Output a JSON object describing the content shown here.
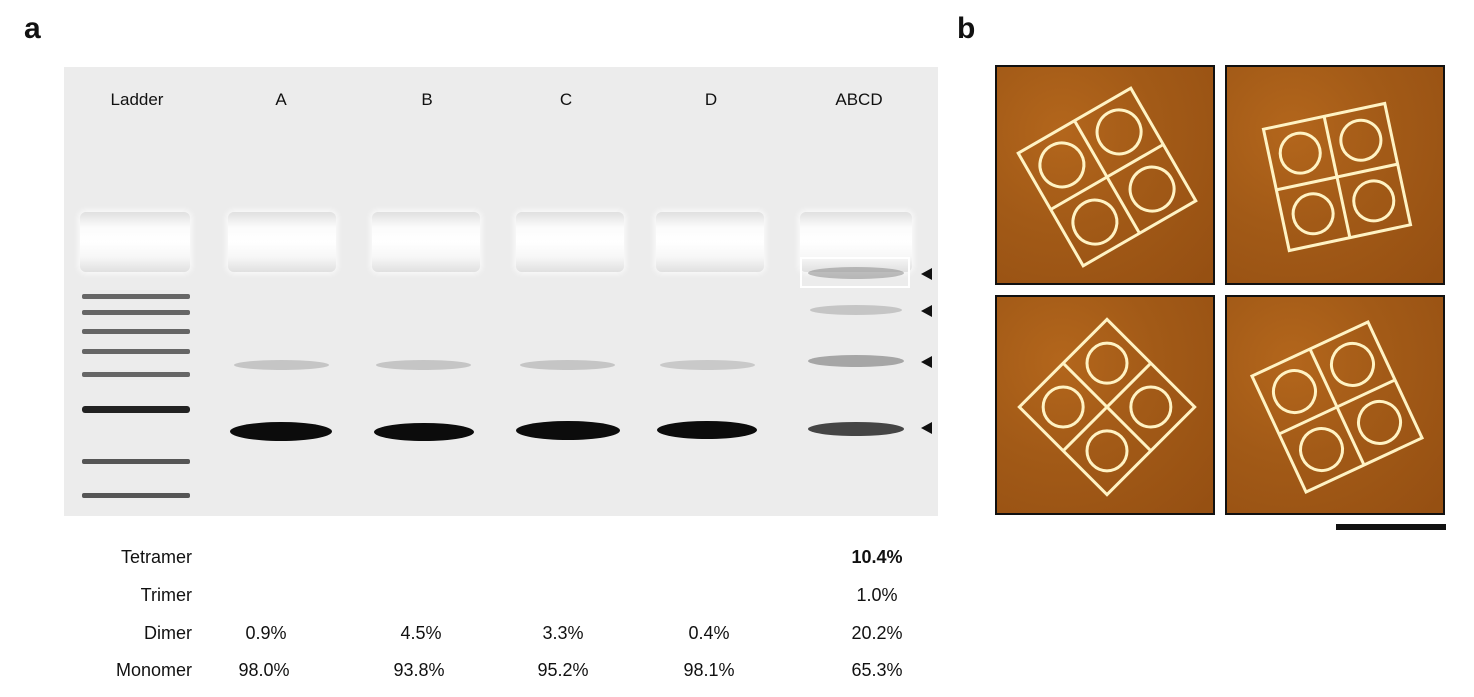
{
  "panels": {
    "a": "a",
    "b": "b"
  },
  "gel": {
    "lanes": [
      "Ladder",
      "A",
      "B",
      "C",
      "D",
      "ABCD"
    ]
  },
  "table": {
    "rows": [
      {
        "label": "Tetramer",
        "values": [
          "",
          "",
          "",
          "",
          "10.4%"
        ],
        "bold_last": true
      },
      {
        "label": "Trimer",
        "values": [
          "",
          "",
          "",
          "",
          "1.0%"
        ]
      },
      {
        "label": "Dimer",
        "values": [
          "0.9%",
          "4.5%",
          "3.3%",
          "0.4%",
          "20.2%"
        ]
      },
      {
        "label": "Monomer",
        "values": [
          "98.0%",
          "93.8%",
          "95.2%",
          "98.1%",
          "65.3%"
        ]
      }
    ]
  },
  "colors": {
    "afm_background": "#a25a17",
    "afm_lattice": "#fff3c4",
    "gel_background": "#ececec"
  }
}
